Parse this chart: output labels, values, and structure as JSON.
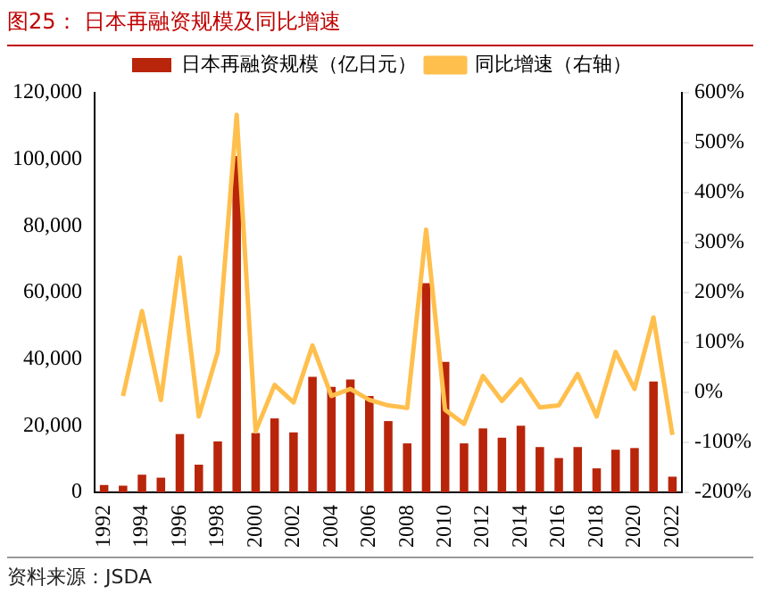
{
  "chart_data": {
    "type": "bar",
    "title": "图25：  日本再融资规模及同比增速",
    "categories": [
      "1992",
      null,
      "1994",
      null,
      "1996",
      null,
      "1998",
      null,
      "2000",
      null,
      "2002",
      null,
      "2004",
      null,
      "2006",
      null,
      "2008",
      null,
      "2010",
      null,
      "2012",
      null,
      "2014",
      null,
      "2016",
      null,
      "2018",
      null,
      "2020",
      null,
      "2022"
    ],
    "series": [
      {
        "name": "日本再融资规模（亿日元）",
        "color": "#b8250a",
        "values": [
          2200,
          2000,
          5300,
          4400,
          17500,
          8300,
          15300,
          101000,
          17800,
          22200,
          18000,
          34700,
          31700,
          33900,
          28900,
          21400,
          14700,
          62800,
          39200,
          14700,
          19200,
          16400,
          20000,
          13600,
          10300,
          13600,
          7200,
          12800,
          13300,
          33300,
          4700
        ]
      },
      {
        "name": "同比增速（右轴）",
        "type": "line",
        "axis": "y2",
        "color": "#ffbf4d",
        "values": [
          null,
          -7,
          163,
          -15,
          270,
          -48,
          81,
          556,
          -78,
          15,
          -20,
          94,
          -7,
          7,
          -15,
          -26,
          -31,
          326,
          -35,
          -63,
          33,
          -17,
          26,
          -30,
          -26,
          37,
          -48,
          81,
          7,
          150,
          -85
        ]
      }
    ],
    "ylim": [
      0,
      120000
    ],
    "yticks": [
      {
        "value": 0,
        "label": "0"
      },
      {
        "value": 20000,
        "label": "20,000"
      },
      {
        "value": 40000,
        "label": "40,000"
      },
      {
        "value": 60000,
        "label": "60,000"
      },
      {
        "value": 80000,
        "label": "80,000"
      },
      {
        "value": 100000,
        "label": "100,000"
      },
      {
        "value": 120000,
        "label": "120,000"
      }
    ],
    "y2lim": [
      -200,
      600
    ],
    "y2ticks": [
      {
        "value": -200,
        "label": "-200%"
      },
      {
        "value": -100,
        "label": "-100%"
      },
      {
        "value": 0,
        "label": "0%"
      },
      {
        "value": 100,
        "label": "100%"
      },
      {
        "value": 200,
        "label": "200%"
      },
      {
        "value": 300,
        "label": "300%"
      },
      {
        "value": 400,
        "label": "400%"
      },
      {
        "value": 500,
        "label": "500%"
      },
      {
        "value": 600,
        "label": "600%"
      }
    ],
    "grid": false,
    "legend": "top",
    "marker": "none",
    "line_style": "solid",
    "annotations": [
      "资料来源：JSDA"
    ]
  }
}
